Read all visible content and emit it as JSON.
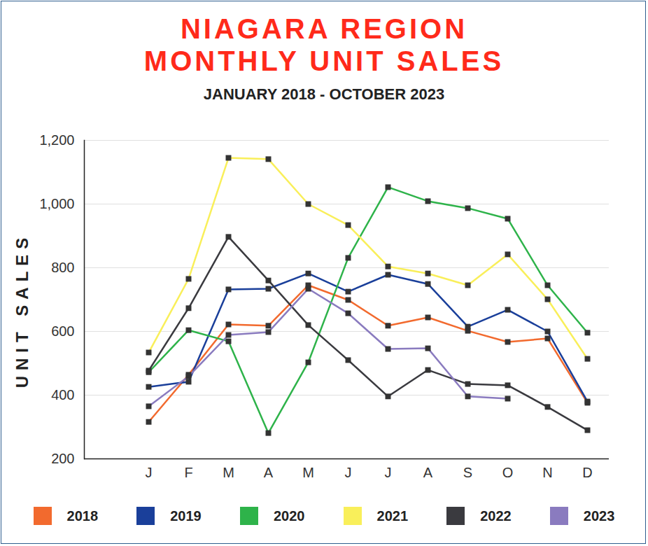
{
  "chart_data": {
    "type": "line",
    "title": "NIAGARA REGION MONTHLY UNIT SALES",
    "subtitle": "JANUARY 2018 - OCTOBER 2023",
    "y_label": "UNIT SALES",
    "categories": [
      "J",
      "F",
      "M",
      "A",
      "M",
      "J",
      "J",
      "A",
      "S",
      "O",
      "N",
      "D"
    ],
    "ylim": [
      200,
      1200
    ],
    "yticks": [
      200,
      400,
      600,
      800,
      1000,
      1200
    ],
    "grid": true,
    "marker": "square",
    "legend": "bottom",
    "series": [
      {
        "name": "2018",
        "color": "#f26a2e",
        "values": [
          316,
          464,
          622,
          618,
          745,
          699,
          618,
          644,
          602,
          567,
          578,
          376
        ]
      },
      {
        "name": "2019",
        "color": "#1a3f9a",
        "values": [
          426,
          442,
          732,
          734,
          782,
          725,
          778,
          749,
          615,
          668,
          600,
          380
        ]
      },
      {
        "name": "2020",
        "color": "#2eb34a",
        "values": [
          472,
          604,
          569,
          281,
          503,
          831,
          1053,
          1009,
          987,
          954,
          745,
          596
        ]
      },
      {
        "name": "2021",
        "color": "#f9ef5a",
        "values": [
          534,
          765,
          1145,
          1141,
          1000,
          934,
          804,
          782,
          745,
          842,
          701,
          514
        ]
      },
      {
        "name": "2022",
        "color": "#3a3a3f",
        "values": [
          477,
          673,
          897,
          760,
          620,
          510,
          396,
          479,
          435,
          431,
          363,
          290
        ]
      },
      {
        "name": "2023",
        "color": "#8a7bbf",
        "values": [
          365,
          459,
          589,
          598,
          734,
          657,
          545,
          547,
          396,
          389,
          null,
          null
        ]
      }
    ]
  }
}
